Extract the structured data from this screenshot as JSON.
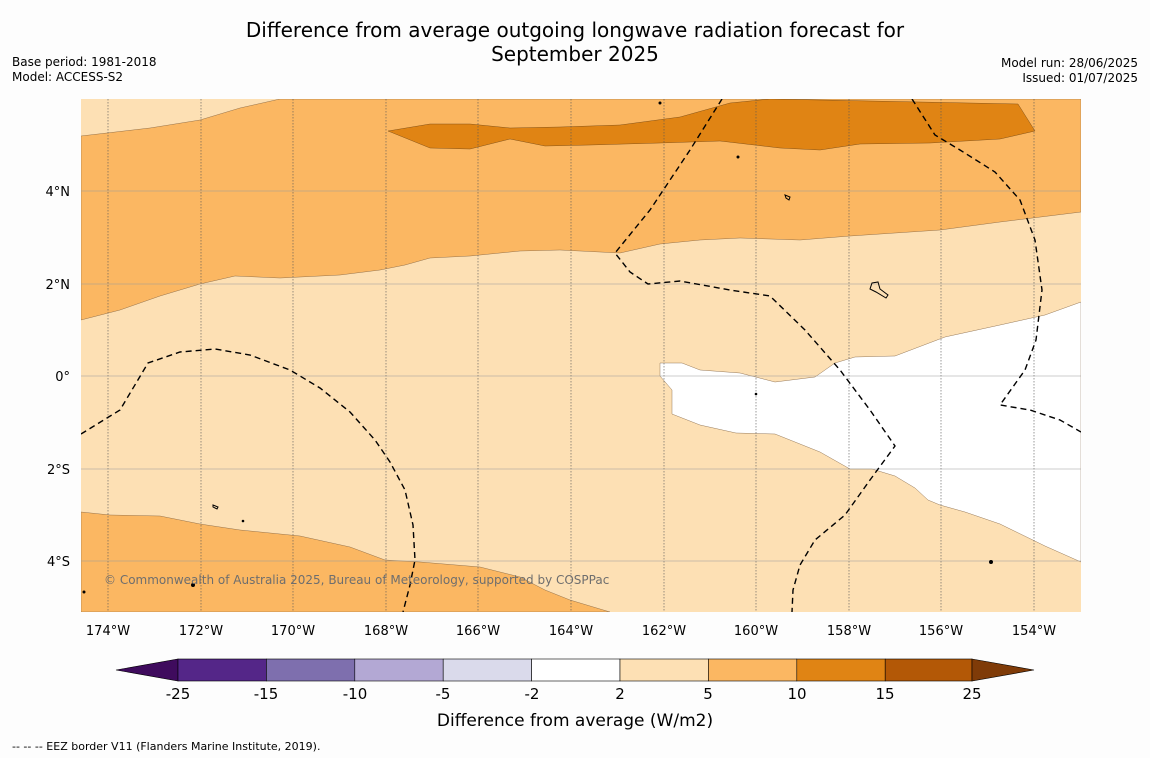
{
  "header": {
    "title_line1": "Difference from average outgoing longwave radiation forecast for",
    "title_line2": "September 2025",
    "base_period": "Base period: 1981-2018",
    "model": "Model: ACCESS-S2",
    "model_run": "Model run: 28/06/2025",
    "issued": "Issued: 01/07/2025"
  },
  "map": {
    "lon_ticks": [
      "174°W",
      "172°W",
      "170°W",
      "168°W",
      "166°W",
      "164°W",
      "162°W",
      "160°W",
      "158°W",
      "156°W",
      "154°W"
    ],
    "lat_ticks": [
      "4°N",
      "2°N",
      "0°",
      "2°S",
      "4°S"
    ],
    "copyright": "© Commonwealth of Australia 2025, Bureau of Meteorology, supported by COSPPac",
    "colors": {
      "land_line": "#000000",
      "anom_2_5": "#fde0b4",
      "anom_5_10": "#fbb762",
      "anom_10_15": "#e08414",
      "neutral": "#ffffff"
    }
  },
  "colorbar": {
    "label": "Difference from average (W/m2)",
    "ticks": [
      "-25",
      "-15",
      "-10",
      "-5",
      "-2",
      "2",
      "5",
      "10",
      "15",
      "25"
    ],
    "colors": [
      "#3f0b5d",
      "#542688",
      "#7e6fae",
      "#b3a8d4",
      "#dadaeb",
      "#ffffff",
      "#fde0b4",
      "#fbb762",
      "#e08414",
      "#b35806",
      "#7f3b08"
    ]
  },
  "footnote": "--  --  -- EEZ border V11 (Flanders Marine Institute, 2019)."
}
